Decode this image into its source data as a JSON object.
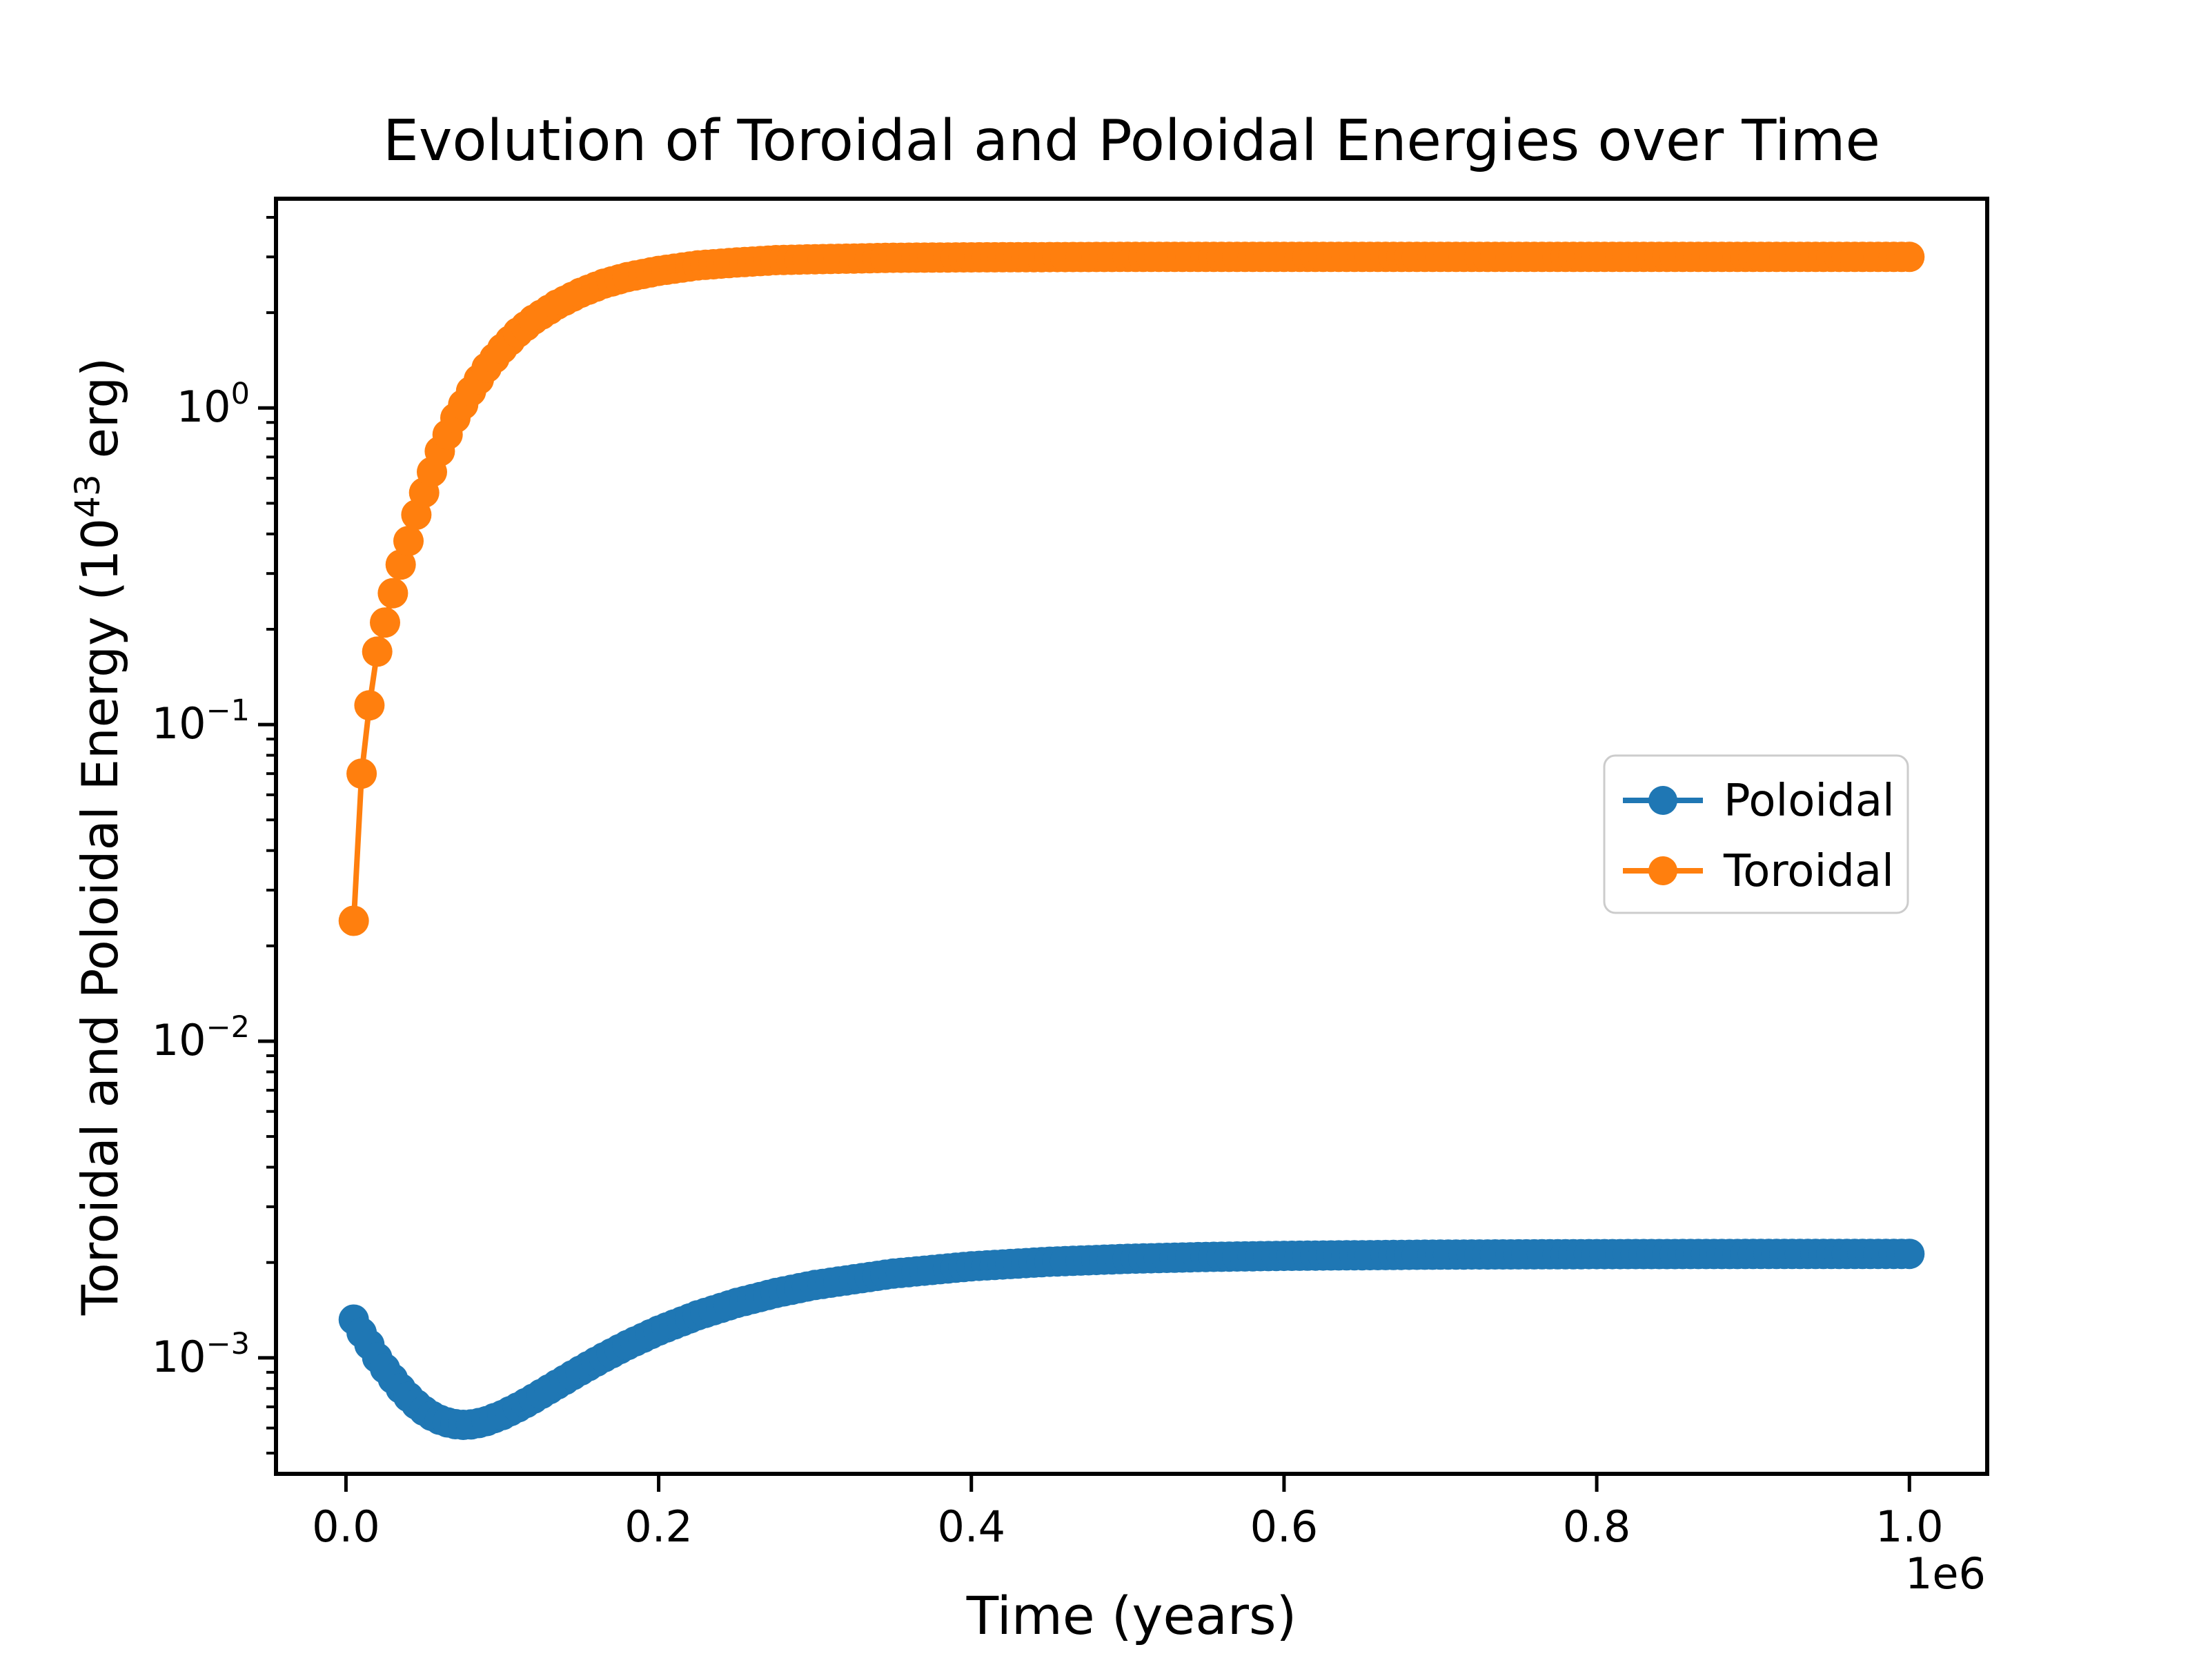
{
  "title": "Evolution of Toroidal and Poloidal Energies over Time",
  "xlabel": "Time (years)",
  "ylabel_prefix": "Toroidal and Poloidal Energy (10",
  "ylabel_exponent": "43",
  "ylabel_suffix": " erg)",
  "x_offset_label": "1e6",
  "colors": {
    "poloidal": "#1f77b4",
    "toroidal": "#ff7f0e",
    "spine": "#000000",
    "legend_border": "#cccccc",
    "background": "#ffffff"
  },
  "legend": {
    "entries": [
      "Poloidal",
      "Toroidal"
    ]
  },
  "chart_data": {
    "type": "line",
    "title": "Evolution of Toroidal and Poloidal Energies over Time",
    "xlabel": "Time (years)",
    "ylabel": "Toroidal and Poloidal Energy (10^43 erg)",
    "y_scale": "log",
    "x_scale_factor": 1000000,
    "xlim": [
      -44750,
      1049750
    ],
    "ylim": [
      0.00043,
      4.58
    ],
    "grid": false,
    "legend_position": "center-right",
    "x_ticks": [
      {
        "value": 0,
        "label": "0.0"
      },
      {
        "value": 200000,
        "label": "0.2"
      },
      {
        "value": 400000,
        "label": "0.4"
      },
      {
        "value": 600000,
        "label": "0.6"
      },
      {
        "value": 800000,
        "label": "0.8"
      },
      {
        "value": 1000000,
        "label": "1.0"
      }
    ],
    "y_ticks": [
      {
        "value": 1,
        "base": "10",
        "exp": "0"
      },
      {
        "value": 0.1,
        "base": "10",
        "exp": "−1"
      },
      {
        "value": 0.01,
        "base": "10",
        "exp": "−2"
      },
      {
        "value": 0.001,
        "base": "10",
        "exp": "−3"
      }
    ],
    "marker": "o",
    "marker_step": 5000,
    "marker_start": 5000,
    "marker_end": 1000000,
    "series": [
      {
        "name": "Poloidal",
        "color": "#1f77b4",
        "x": [
          5000,
          10000,
          15000,
          20000,
          25000,
          30000,
          35000,
          40000,
          45000,
          50000,
          55000,
          60000,
          65000,
          70000,
          75000,
          80000,
          85000,
          90000,
          100000,
          110000,
          120000,
          135000,
          150000,
          165000,
          180000,
          200000,
          225000,
          250000,
          275000,
          300000,
          350000,
          400000,
          450000,
          500000,
          550000,
          600000,
          700000,
          800000,
          900000,
          1000000
        ],
        "y": [
          0.00132,
          0.0012,
          0.0011,
          0.001,
          0.000925,
          0.000858,
          0.0008,
          0.000752,
          0.000712,
          0.00068,
          0.000655,
          0.000637,
          0.000625,
          0.000617,
          0.000614,
          0.000616,
          0.000622,
          0.000631,
          0.000659,
          0.000697,
          0.000743,
          0.000823,
          0.000911,
          0.001003,
          0.001097,
          0.001219,
          0.001362,
          0.00149,
          0.001602,
          0.001698,
          0.001845,
          0.001945,
          0.002011,
          0.002054,
          0.002082,
          0.002099,
          0.002118,
          0.002125,
          0.002128,
          0.002129
        ]
      },
      {
        "name": "Toroidal",
        "color": "#ff7f0e",
        "x": [
          5000,
          10000,
          15000,
          20000,
          25000,
          30000,
          35000,
          40000,
          45000,
          50000,
          60000,
          70000,
          80000,
          90000,
          100000,
          110000,
          120000,
          135000,
          150000,
          165000,
          180000,
          200000,
          225000,
          250000,
          275000,
          300000,
          350000,
          400000,
          500000,
          600000,
          700000,
          800000,
          900000,
          1000000
        ],
        "y": [
          0.024,
          0.07,
          0.115,
          0.17,
          0.21,
          0.26,
          0.32,
          0.38,
          0.46,
          0.54,
          0.73,
          0.93,
          1.13,
          1.34,
          1.54,
          1.73,
          1.9,
          2.12,
          2.31,
          2.47,
          2.59,
          2.71,
          2.82,
          2.88,
          2.93,
          2.95,
          2.98,
          2.99,
          3.0,
          3.0,
          3.0,
          3.0,
          3.0,
          3.0
        ]
      }
    ]
  }
}
